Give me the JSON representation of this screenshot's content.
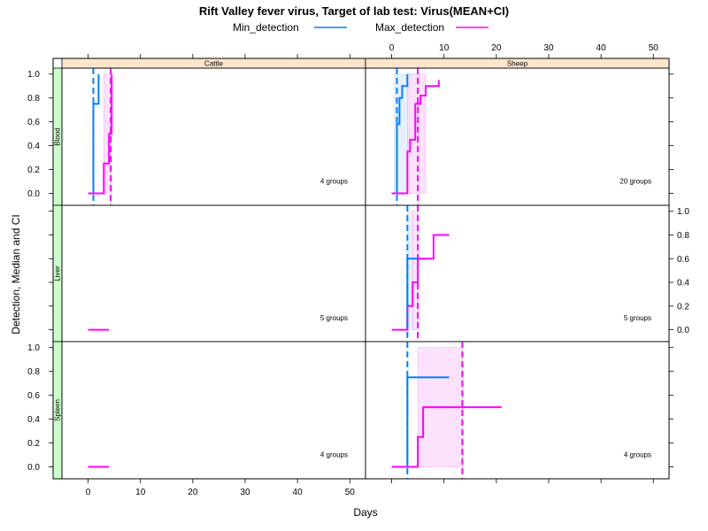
{
  "chart_data": {
    "type": "line",
    "title": "Rift Valley fever virus, Target of lab test: Virus(MEAN+CI)",
    "xlabel": "Days",
    "ylabel": "Detection, Median and CI",
    "xlim": [
      -5,
      53
    ],
    "ylim": [
      -0.1,
      1.05
    ],
    "x_ticks": [
      0,
      10,
      20,
      30,
      40,
      50
    ],
    "x_tick_labels": [
      "0",
      "10",
      "20",
      "30",
      "40",
      "50"
    ],
    "y_ticks": [
      0,
      0.2,
      0.4,
      0.6,
      0.8,
      1.0
    ],
    "y_tick_labels": [
      "0.0",
      "0.2",
      "0.4",
      "0.6",
      "0.8",
      "1.0"
    ],
    "columns": [
      "Cattle",
      "Sheep"
    ],
    "rows": [
      "Blood",
      "Liver",
      "Spleen"
    ],
    "legend": [
      {
        "name": "Min_detection",
        "color": "#0080ff"
      },
      {
        "name": "Max_detection",
        "color": "#ff00ff"
      }
    ],
    "colors": {
      "min": "#0080ff",
      "max": "#ff00ff",
      "min_band": "#e6f0fc",
      "max_band": "#fcd5fc",
      "strip_top": "#ffe5cc",
      "strip_left": "#ccffcc"
    },
    "panels": [
      {
        "column": "Cattle",
        "row": "Blood",
        "count_label": "4 groups",
        "min_series": [
          [
            0,
            0
          ],
          [
            1,
            0
          ],
          [
            1,
            0.75
          ],
          [
            2,
            0.75
          ],
          [
            2,
            1.0
          ]
        ],
        "max_series": [
          [
            0,
            0
          ],
          [
            3,
            0
          ],
          [
            3,
            0.25
          ],
          [
            4,
            0.25
          ],
          [
            4,
            0.5
          ],
          [
            4.5,
            0.5
          ],
          [
            4.5,
            1.0
          ]
        ],
        "min_median": 1,
        "max_median": 4.3,
        "min_band": null,
        "max_band": [
          3,
          4.5
        ]
      },
      {
        "column": "Sheep",
        "row": "Blood",
        "count_label": "20 groups",
        "min_series": [
          [
            0,
            0
          ],
          [
            1,
            0
          ],
          [
            1,
            0.58
          ],
          [
            1.5,
            0.58
          ],
          [
            1.5,
            0.8
          ],
          [
            2,
            0.8
          ],
          [
            2,
            0.9
          ],
          [
            3,
            0.9
          ],
          [
            3,
            1.0
          ]
        ],
        "max_series": [
          [
            0,
            0
          ],
          [
            3,
            0
          ],
          [
            3,
            0.35
          ],
          [
            3.5,
            0.35
          ],
          [
            3.5,
            0.45
          ],
          [
            4.5,
            0.45
          ],
          [
            4.5,
            0.75
          ],
          [
            5.5,
            0.75
          ],
          [
            5.5,
            0.82
          ],
          [
            6.5,
            0.82
          ],
          [
            6.5,
            0.9
          ],
          [
            9,
            0.9
          ],
          [
            9,
            0.95
          ]
        ],
        "min_median": 1,
        "max_median": 5,
        "min_band": [
          0.5,
          3.5
        ],
        "max_band": [
          3,
          6.5
        ]
      },
      {
        "column": "Cattle",
        "row": "Liver",
        "count_label": "5 groups",
        "min_series": [],
        "max_series": [
          [
            0,
            0
          ],
          [
            4,
            0
          ]
        ],
        "min_median": null,
        "max_median": null,
        "min_band": null,
        "max_band": null
      },
      {
        "column": "Sheep",
        "row": "Liver",
        "count_label": "5 groups",
        "min_series": [
          [
            3,
            0
          ],
          [
            3,
            0.6
          ],
          [
            5,
            0.6
          ]
        ],
        "max_series": [
          [
            0,
            0
          ],
          [
            3,
            0
          ],
          [
            3,
            0.2
          ],
          [
            4,
            0.2
          ],
          [
            4,
            0.4
          ],
          [
            5,
            0.4
          ],
          [
            5,
            0.6
          ],
          [
            8,
            0.6
          ],
          [
            8,
            0.8
          ],
          [
            11,
            0.8
          ]
        ],
        "min_median": 3,
        "max_median": 5,
        "min_band": [
          3,
          4
        ],
        "max_band": [
          4,
          5
        ]
      },
      {
        "column": "Cattle",
        "row": "Spleen",
        "count_label": "4 groups",
        "min_series": [],
        "max_series": [
          [
            0,
            0
          ],
          [
            4,
            0
          ]
        ],
        "min_median": null,
        "max_median": null,
        "min_band": null,
        "max_band": null
      },
      {
        "column": "Sheep",
        "row": "Spleen",
        "count_label": "4 groups",
        "min_series": [
          [
            3,
            0
          ],
          [
            3,
            0.75
          ],
          [
            11,
            0.75
          ]
        ],
        "max_series": [
          [
            0,
            0
          ],
          [
            5,
            0
          ],
          [
            5,
            0.25
          ],
          [
            6,
            0.25
          ],
          [
            6,
            0.5
          ],
          [
            21,
            0.5
          ]
        ],
        "min_median": 3,
        "max_median": 13.5,
        "min_band": null,
        "max_band": [
          5,
          13.5
        ]
      }
    ]
  }
}
